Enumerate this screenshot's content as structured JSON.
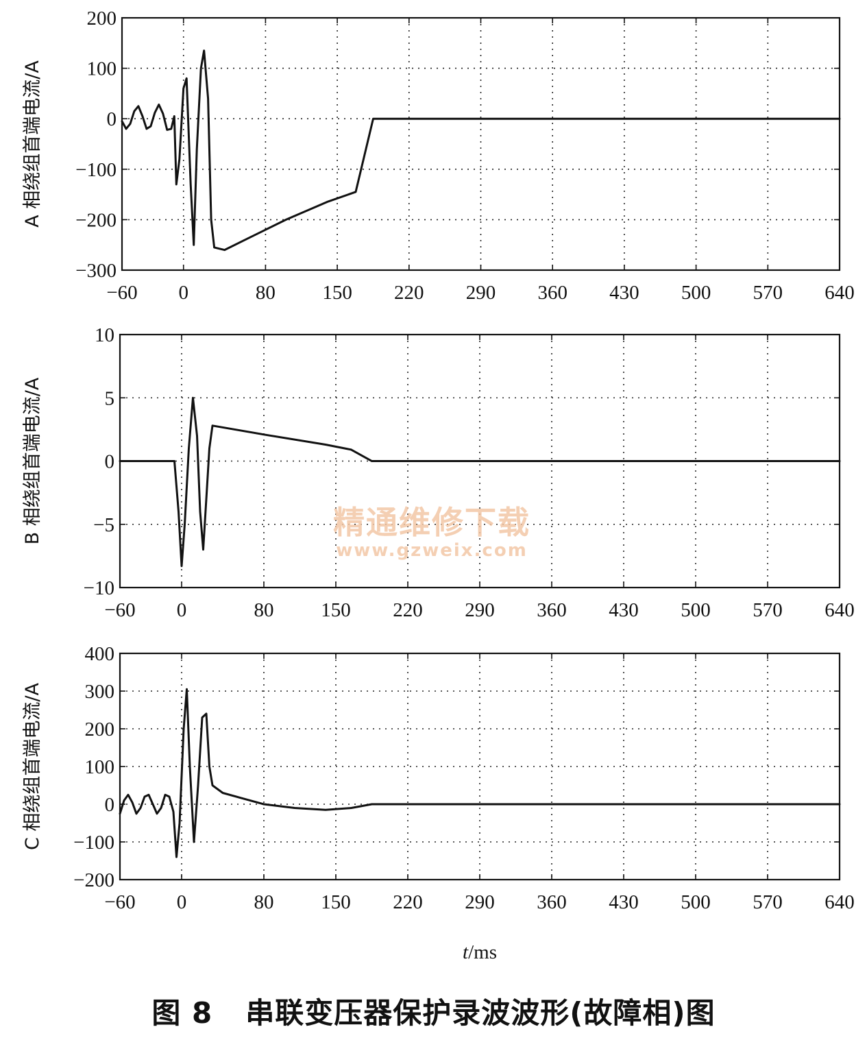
{
  "figure": {
    "caption_number": "图 8",
    "caption_title": "串联变压器保护录波波形(故障相)图",
    "xlabel_italic": "t",
    "xlabel_unit": "/ms",
    "watermark_title": "精通维修下载",
    "watermark_url": "www.gzweix.com"
  },
  "chart_data": [
    {
      "type": "line",
      "ylabel": "A 相绕组首端电流/A",
      "xlim": [
        -60,
        640
      ],
      "ylim": [
        -300,
        200
      ],
      "xticks": [
        -60,
        0,
        80,
        150,
        220,
        290,
        360,
        430,
        500,
        570,
        640
      ],
      "yticks": [
        -300,
        -200,
        -100,
        0,
        100,
        200
      ],
      "grid": true,
      "series": [
        {
          "x": [
            -60,
            -56,
            -52,
            -48,
            -44,
            -40,
            -36,
            -32,
            -28,
            -24,
            -20,
            -16,
            -12,
            -9,
            -7,
            -4,
            0,
            3,
            7,
            10,
            13,
            17,
            20,
            24,
            27,
            30,
            40,
            60,
            100,
            140,
            168,
            185,
            250,
            350,
            450,
            550,
            640
          ],
          "y": [
            -5,
            -20,
            -10,
            15,
            25,
            5,
            -20,
            -15,
            12,
            28,
            10,
            -22,
            -20,
            5,
            -130,
            -80,
            60,
            80,
            -130,
            -250,
            -60,
            100,
            135,
            40,
            -200,
            -255,
            -260,
            -240,
            -200,
            -165,
            -145,
            0,
            0,
            0,
            0,
            0,
            0
          ]
        }
      ]
    },
    {
      "type": "line",
      "ylabel": "B 相绕组首端电流/A",
      "xlim": [
        -60,
        640
      ],
      "ylim": [
        -10,
        10
      ],
      "xticks": [
        -60,
        0,
        80,
        150,
        220,
        290,
        360,
        430,
        500,
        570,
        640
      ],
      "yticks": [
        -10,
        -5,
        0,
        5,
        10
      ],
      "grid": true,
      "series": [
        {
          "x": [
            -60,
            -7,
            -3,
            0,
            3,
            7,
            11,
            15,
            18,
            21,
            24,
            27,
            30,
            80,
            140,
            165,
            185,
            250,
            350,
            450,
            550,
            640
          ],
          "y": [
            0,
            0,
            -4,
            -8.3,
            -5,
            1,
            5,
            2,
            -4,
            -7,
            -3,
            1,
            2.8,
            2.1,
            1.3,
            0.9,
            0,
            0,
            0,
            0,
            0,
            0
          ]
        }
      ]
    },
    {
      "type": "line",
      "ylabel": "C 相绕组首端电流/A",
      "xlim": [
        -60,
        640
      ],
      "ylim": [
        -200,
        400
      ],
      "xticks": [
        -60,
        0,
        80,
        150,
        220,
        290,
        360,
        430,
        500,
        570,
        640
      ],
      "yticks": [
        -200,
        -100,
        0,
        100,
        200,
        300,
        400
      ],
      "grid": true,
      "series": [
        {
          "x": [
            -60,
            -56,
            -52,
            -48,
            -44,
            -40,
            -36,
            -32,
            -28,
            -24,
            -20,
            -16,
            -12,
            -8,
            -5,
            -2,
            2,
            5,
            8,
            12,
            16,
            20,
            24,
            27,
            30,
            40,
            60,
            80,
            110,
            140,
            165,
            185,
            250,
            350,
            450,
            550,
            640
          ],
          "y": [
            -25,
            10,
            25,
            5,
            -25,
            -10,
            20,
            25,
            0,
            -25,
            -10,
            25,
            20,
            -20,
            -140,
            -50,
            200,
            305,
            100,
            -100,
            50,
            230,
            240,
            100,
            50,
            30,
            15,
            0,
            -10,
            -15,
            -10,
            0,
            0,
            0,
            0,
            0,
            0
          ]
        }
      ]
    }
  ]
}
